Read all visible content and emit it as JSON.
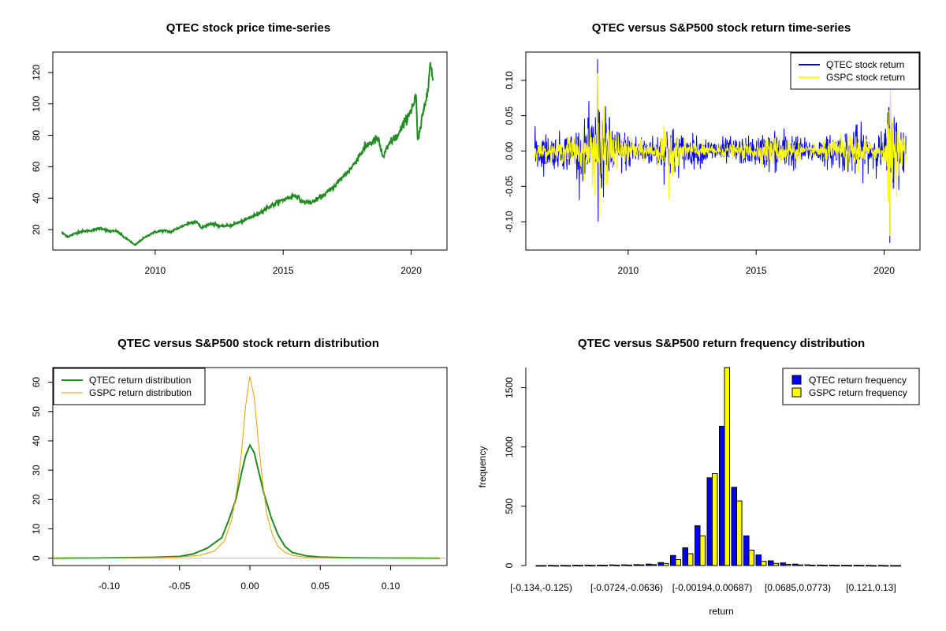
{
  "chart_data": [
    {
      "panel": "price",
      "type": "line",
      "title": "QTEC stock price time-series",
      "xlabel": "",
      "ylabel": "",
      "x_ticks": [
        "2010",
        "2015",
        "2020"
      ],
      "y_ticks": [
        "20",
        "40",
        "60",
        "80",
        "100",
        "120"
      ],
      "xlim": [
        2006.0,
        2021.4
      ],
      "ylim": [
        7,
        133
      ],
      "series": [
        {
          "color": "#228B22",
          "points": [
            [
              2006.35,
              18
            ],
            [
              2006.6,
              15.5
            ],
            [
              2007.0,
              18.5
            ],
            [
              2007.5,
              19.5
            ],
            [
              2007.9,
              21
            ],
            [
              2008.2,
              19
            ],
            [
              2008.5,
              19
            ],
            [
              2008.8,
              15
            ],
            [
              2009.0,
              13
            ],
            [
              2009.2,
              10
            ],
            [
              2009.5,
              14
            ],
            [
              2009.9,
              18
            ],
            [
              2010.3,
              19.5
            ],
            [
              2010.6,
              18.5
            ],
            [
              2010.9,
              21
            ],
            [
              2011.3,
              24
            ],
            [
              2011.6,
              25.5
            ],
            [
              2011.8,
              21
            ],
            [
              2012.2,
              24
            ],
            [
              2012.6,
              22
            ],
            [
              2013.0,
              23
            ],
            [
              2013.5,
              26
            ],
            [
              2014.0,
              30
            ],
            [
              2014.5,
              35
            ],
            [
              2015.0,
              39
            ],
            [
              2015.5,
              42
            ],
            [
              2015.7,
              38
            ],
            [
              2016.1,
              37
            ],
            [
              2016.5,
              41
            ],
            [
              2016.9,
              46
            ],
            [
              2017.3,
              53
            ],
            [
              2017.7,
              60
            ],
            [
              2018.0,
              68
            ],
            [
              2018.3,
              74
            ],
            [
              2018.7,
              78
            ],
            [
              2018.9,
              66
            ],
            [
              2019.2,
              76
            ],
            [
              2019.5,
              80
            ],
            [
              2019.8,
              90
            ],
            [
              2020.1,
              100
            ],
            [
              2020.2,
              105
            ],
            [
              2020.25,
              75
            ],
            [
              2020.4,
              88
            ],
            [
              2020.6,
              105
            ],
            [
              2020.75,
              126
            ],
            [
              2020.85,
              115
            ]
          ]
        }
      ]
    },
    {
      "panel": "returns",
      "type": "line",
      "title": "QTEC versus S&P500 stock return time-series",
      "xlabel": "",
      "ylabel": "",
      "x_ticks": [
        "2010",
        "2015",
        "2020"
      ],
      "y_ticks": [
        "-0.10",
        "-0.05",
        "0.00",
        "0.05",
        "0.10"
      ],
      "xlim": [
        2006.0,
        2021.4
      ],
      "ylim": [
        -0.14,
        0.14
      ],
      "legend": {
        "position": "top-right",
        "entries": [
          "QTEC stock return",
          "GSPC stock return"
        ]
      },
      "series": [
        {
          "name": "QTEC stock return",
          "color": "#0000FF",
          "volatility_envelope": [
            [
              2006.3,
              0.03
            ],
            [
              2007.0,
              0.022
            ],
            [
              2007.6,
              0.026
            ],
            [
              2008.4,
              0.04
            ],
            [
              2008.8,
              0.07
            ],
            [
              2009.1,
              0.055
            ],
            [
              2009.5,
              0.035
            ],
            [
              2010.0,
              0.025
            ],
            [
              2011.0,
              0.02
            ],
            [
              2011.6,
              0.04
            ],
            [
              2012.0,
              0.025
            ],
            [
              2013.0,
              0.018
            ],
            [
              2014.0,
              0.018
            ],
            [
              2015.0,
              0.02
            ],
            [
              2015.6,
              0.028
            ],
            [
              2016.2,
              0.03
            ],
            [
              2017.0,
              0.015
            ],
            [
              2018.0,
              0.022
            ],
            [
              2018.9,
              0.035
            ],
            [
              2019.5,
              0.025
            ],
            [
              2020.0,
              0.025
            ],
            [
              2020.2,
              0.08
            ],
            [
              2020.4,
              0.06
            ],
            [
              2020.8,
              0.035
            ]
          ],
          "spikes": [
            [
              2008.8,
              0.13
            ],
            [
              2008.83,
              -0.1
            ],
            [
              2020.22,
              -0.13
            ],
            [
              2020.25,
              0.09
            ]
          ]
        },
        {
          "name": "GSPC stock return",
          "color": "#FFFF00",
          "volatility_envelope": [
            [
              2006.3,
              0.012
            ],
            [
              2007.0,
              0.01
            ],
            [
              2007.6,
              0.018
            ],
            [
              2008.4,
              0.03
            ],
            [
              2008.8,
              0.06
            ],
            [
              2009.1,
              0.045
            ],
            [
              2009.5,
              0.025
            ],
            [
              2010.0,
              0.015
            ],
            [
              2011.0,
              0.012
            ],
            [
              2011.6,
              0.035
            ],
            [
              2012.0,
              0.014
            ],
            [
              2013.0,
              0.01
            ],
            [
              2014.0,
              0.01
            ],
            [
              2015.0,
              0.012
            ],
            [
              2015.6,
              0.02
            ],
            [
              2016.2,
              0.02
            ],
            [
              2017.0,
              0.006
            ],
            [
              2018.0,
              0.016
            ],
            [
              2018.9,
              0.025
            ],
            [
              2019.5,
              0.012
            ],
            [
              2020.0,
              0.012
            ],
            [
              2020.2,
              0.075
            ],
            [
              2020.4,
              0.045
            ],
            [
              2020.8,
              0.02
            ]
          ],
          "spikes": [
            [
              2008.8,
              0.11
            ],
            [
              2008.86,
              -0.095
            ],
            [
              2011.6,
              -0.068
            ],
            [
              2020.22,
              -0.12
            ],
            [
              2020.25,
              0.09
            ]
          ]
        }
      ]
    },
    {
      "panel": "density",
      "type": "line",
      "title": "QTEC versus S&P500 stock return distribution",
      "xlabel": "",
      "ylabel": "",
      "x_ticks": [
        "-0.10",
        "-0.05",
        "0.00",
        "0.05",
        "0.10"
      ],
      "y_ticks": [
        "0",
        "10",
        "20",
        "30",
        "40",
        "50",
        "60"
      ],
      "xlim": [
        -0.14,
        0.14
      ],
      "ylim": [
        -2.5,
        65
      ],
      "legend": {
        "position": "top-left",
        "entries": [
          "QTEC return distribution",
          "GSPC return distribution"
        ]
      },
      "series": [
        {
          "name": "QTEC return distribution",
          "color": "#228B22",
          "points": [
            [
              -0.14,
              0
            ],
            [
              -0.1,
              0.1
            ],
            [
              -0.07,
              0.3
            ],
            [
              -0.05,
              0.6
            ],
            [
              -0.04,
              1.5
            ],
            [
              -0.03,
              3.5
            ],
            [
              -0.02,
              7
            ],
            [
              -0.015,
              13
            ],
            [
              -0.01,
              20
            ],
            [
              -0.006,
              29
            ],
            [
              -0.003,
              35
            ],
            [
              0.0,
              38.5
            ],
            [
              0.003,
              36
            ],
            [
              0.006,
              30
            ],
            [
              0.01,
              22
            ],
            [
              0.015,
              14
            ],
            [
              0.02,
              8
            ],
            [
              0.025,
              4
            ],
            [
              0.03,
              2
            ],
            [
              0.04,
              0.8
            ],
            [
              0.05,
              0.4
            ],
            [
              0.07,
              0.15
            ],
            [
              0.1,
              0.05
            ],
            [
              0.135,
              0
            ]
          ]
        },
        {
          "name": "GSPC return distribution",
          "color": "#E69F00",
          "points": [
            [
              -0.14,
              0
            ],
            [
              -0.1,
              0.05
            ],
            [
              -0.07,
              0.2
            ],
            [
              -0.05,
              0.4
            ],
            [
              -0.035,
              1
            ],
            [
              -0.025,
              2.5
            ],
            [
              -0.018,
              6
            ],
            [
              -0.013,
              13
            ],
            [
              -0.009,
              24
            ],
            [
              -0.006,
              36
            ],
            [
              -0.003,
              52
            ],
            [
              0.0,
              62
            ],
            [
              0.003,
              55
            ],
            [
              0.006,
              40
            ],
            [
              0.009,
              26
            ],
            [
              0.012,
              15
            ],
            [
              0.016,
              8
            ],
            [
              0.02,
              4
            ],
            [
              0.025,
              2
            ],
            [
              0.03,
              1
            ],
            [
              0.04,
              0.3
            ],
            [
              0.06,
              0.1
            ],
            [
              0.09,
              0.05
            ],
            [
              0.135,
              0
            ]
          ]
        }
      ]
    },
    {
      "panel": "histogram",
      "type": "bar",
      "title": "QTEC versus S&P500 return frequency distribution",
      "xlabel": "return",
      "ylabel": "frequency",
      "x_tick_labels": [
        "[-0.134,-0.125)",
        "[-0.0724,-0.0636)",
        "[-0.00194,0.00687)",
        "[0.0685,0.0773)",
        "[0.121,0.13]"
      ],
      "x_tick_bins": [
        0,
        7,
        14,
        21,
        27
      ],
      "y_ticks": [
        "0",
        "500",
        "1000",
        "1500"
      ],
      "ylim": [
        0,
        1670
      ],
      "legend": {
        "position": "top-right",
        "entries": [
          "QTEC return frequency",
          "GSPC return frequency"
        ]
      },
      "bin_count": 30,
      "series": [
        {
          "name": "QTEC return frequency",
          "color": "#0000FF",
          "values": [
            0,
            1,
            1,
            2,
            3,
            3,
            5,
            6,
            8,
            12,
            25,
            85,
            150,
            335,
            740,
            1175,
            660,
            250,
            90,
            40,
            22,
            12,
            6,
            4,
            3,
            2,
            2,
            1,
            1,
            0
          ]
        },
        {
          "name": "GSPC return frequency",
          "color": "#FFFF00",
          "values": [
            0,
            0,
            0,
            1,
            1,
            2,
            3,
            4,
            6,
            8,
            18,
            50,
            100,
            250,
            775,
            1700,
            545,
            130,
            35,
            18,
            10,
            5,
            3,
            2,
            1,
            1,
            1,
            0,
            0,
            0
          ]
        }
      ]
    }
  ]
}
